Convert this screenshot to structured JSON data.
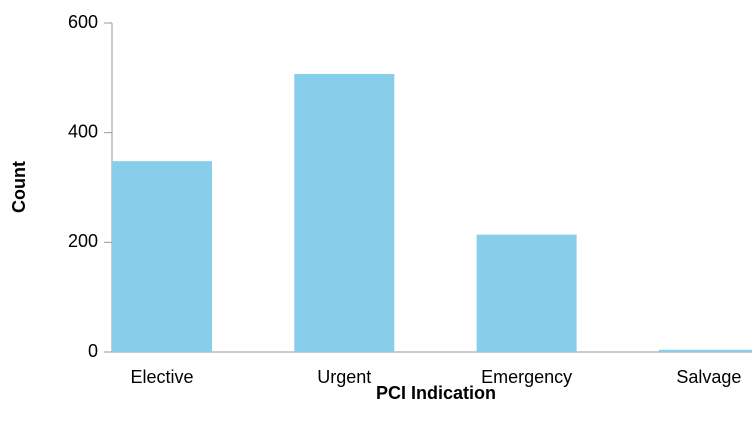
{
  "chart_data": {
    "type": "bar",
    "x_label": "PCI Indication",
    "y_label": "Count",
    "categories": [
      "Elective",
      "Urgent",
      "Emergency",
      "Salvage"
    ],
    "values": [
      348,
      507,
      214,
      4
    ],
    "color": "#87ceeb",
    "ylim": [
      0,
      600
    ],
    "yticks": [
      0,
      200,
      400,
      600
    ],
    "grid": false
  }
}
